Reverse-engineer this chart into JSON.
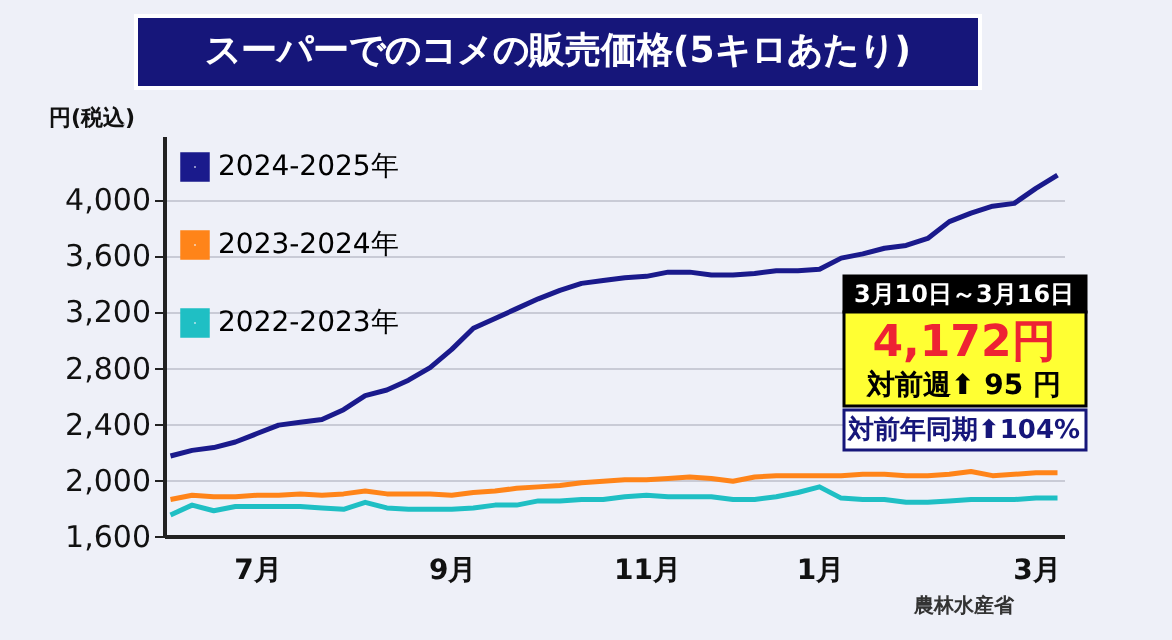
{
  "chart_data": {
    "type": "line",
    "title": "スーパーでのコメの販売価格(5キロあたり)",
    "ylabel": "円(税込)",
    "categories": [
      null,
      null,
      null,
      null,
      "7月",
      null,
      null,
      null,
      null,
      null,
      null,
      null,
      null,
      "9月",
      null,
      null,
      null,
      null,
      null,
      null,
      null,
      null,
      "11月",
      null,
      null,
      null,
      null,
      null,
      null,
      null,
      "1月",
      null,
      null,
      null,
      null,
      null,
      null,
      null,
      null,
      null,
      "3月",
      null
    ],
    "series": [
      {
        "name": "2024-2025年",
        "color": "#1a1a8c",
        "values": [
          2170,
          2210,
          2230,
          2270,
          2330,
          2390,
          2410,
          2430,
          2500,
          2600,
          2640,
          2710,
          2800,
          2930,
          3080,
          3150,
          3220,
          3290,
          3350,
          3400,
          3420,
          3440,
          3450,
          3480,
          3480,
          3460,
          3460,
          3470,
          3490,
          3490,
          3500,
          3580,
          3610,
          3650,
          3670,
          3720,
          3840,
          3900,
          3950,
          3970,
          4077,
          4172
        ]
      },
      {
        "name": "2023-2024年",
        "color": "#ff8419",
        "values": [
          1860,
          1890,
          1880,
          1880,
          1890,
          1890,
          1900,
          1890,
          1900,
          1920,
          1900,
          1900,
          1900,
          1890,
          1910,
          1920,
          1940,
          1950,
          1960,
          1980,
          1990,
          2000,
          2000,
          2010,
          2020,
          2010,
          1990,
          2020,
          2030,
          2030,
          2030,
          2030,
          2040,
          2040,
          2030,
          2030,
          2040,
          2060,
          2030,
          2040,
          2050,
          2050
        ]
      },
      {
        "name": "2022-2023年",
        "color": "#1fbfc4",
        "values": [
          1750,
          1820,
          1780,
          1810,
          1810,
          1810,
          1810,
          1800,
          1790,
          1840,
          1800,
          1790,
          1790,
          1790,
          1800,
          1820,
          1820,
          1850,
          1850,
          1860,
          1860,
          1880,
          1890,
          1880,
          1880,
          1880,
          1860,
          1860,
          1880,
          1910,
          1950,
          1870,
          1860,
          1860,
          1840,
          1840,
          1850,
          1860,
          1860,
          1860,
          1870,
          1870
        ]
      }
    ],
    "ylim": [
      1600,
      4450
    ],
    "yticks": [
      {
        "value": 1600,
        "label": "1,600"
      },
      {
        "value": 2000,
        "label": "2,000"
      },
      {
        "value": 2400,
        "label": "2,400"
      },
      {
        "value": 2800,
        "label": "2,800"
      },
      {
        "value": 3200,
        "label": "3,200"
      },
      {
        "value": 3600,
        "label": "3,600"
      },
      {
        "value": 4000,
        "label": "4,000"
      }
    ],
    "grid": "y",
    "legend": "top left",
    "marker": "none",
    "line_style": "solid",
    "annotations": [
      "3月10日～3月16日",
      "4,172円",
      "対前週⬆ 95 円",
      "対前年同期⬆104%",
      "農林水産省"
    ]
  }
}
